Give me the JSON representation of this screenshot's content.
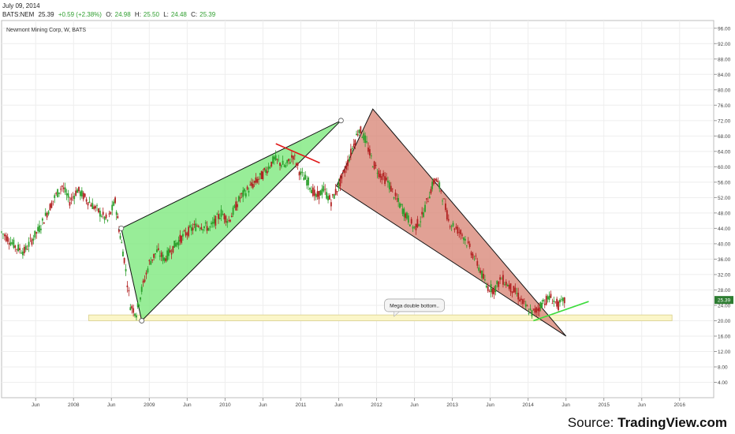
{
  "header": {
    "date": "July 09, 2014",
    "symbol": "BATS:NEM",
    "last": "25.39",
    "change": "+0.59 (+2.38%)",
    "open_label": "O:",
    "open": "24.98",
    "high_label": "H:",
    "high": "25.50",
    "low_label": "L:",
    "low": "24.48",
    "close_label": "C:",
    "close": "25.39"
  },
  "source": {
    "label": "Source:",
    "name": "TradingView.com"
  },
  "colors": {
    "up_candle": "#2ca02c",
    "down_candle": "#b22222",
    "green_wedge": "#7ee87e",
    "red_wedge": "#d98a7a",
    "support_band": "#fbf6c8",
    "price_badge": "#2e7d32"
  },
  "chart_data": {
    "type": "candlestick",
    "title": "Newmont Mining Corp, W, BATS",
    "x_ticks": [
      "Jun",
      "2008",
      "Jun",
      "2009",
      "Jun",
      "2010",
      "Jun",
      "2011",
      "Jun",
      "2012",
      "Jun",
      "2013",
      "Jun",
      "2014",
      "Jun",
      "2015",
      "Jun",
      "2016"
    ],
    "y_ticks": [
      "96.00",
      "92.00",
      "88.00",
      "84.00",
      "80.00",
      "76.00",
      "72.00",
      "68.00",
      "64.00",
      "60.00",
      "56.00",
      "52.00",
      "48.00",
      "44.00",
      "40.00",
      "36.00",
      "32.00",
      "28.00",
      "24.00",
      "20.00",
      "16.00",
      "12.00",
      "8.00",
      "4.00"
    ],
    "ylim": [
      0,
      98
    ],
    "xlim": [
      2007.0,
      2016.4
    ],
    "grid": true,
    "last_price_label": "25.39",
    "price_path": [
      [
        2007.0,
        43
      ],
      [
        2007.1,
        41
      ],
      [
        2007.2,
        39
      ],
      [
        2007.3,
        38
      ],
      [
        2007.4,
        41
      ],
      [
        2007.5,
        44
      ],
      [
        2007.6,
        48
      ],
      [
        2007.7,
        52
      ],
      [
        2007.8,
        55
      ],
      [
        2007.9,
        51
      ],
      [
        2008.0,
        54
      ],
      [
        2008.1,
        52
      ],
      [
        2008.2,
        50
      ],
      [
        2008.3,
        48
      ],
      [
        2008.4,
        46
      ],
      [
        2008.5,
        51
      ],
      [
        2008.55,
        44
      ],
      [
        2008.62,
        36
      ],
      [
        2008.7,
        24
      ],
      [
        2008.78,
        22
      ],
      [
        2008.85,
        28
      ],
      [
        2008.95,
        35
      ],
      [
        2009.05,
        38
      ],
      [
        2009.15,
        36
      ],
      [
        2009.3,
        40
      ],
      [
        2009.45,
        43
      ],
      [
        2009.6,
        45
      ],
      [
        2009.75,
        44
      ],
      [
        2009.9,
        48
      ],
      [
        2010.0,
        46
      ],
      [
        2010.15,
        52
      ],
      [
        2010.3,
        55
      ],
      [
        2010.45,
        58
      ],
      [
        2010.6,
        62
      ],
      [
        2010.75,
        60
      ],
      [
        2010.85,
        63
      ],
      [
        2010.95,
        58
      ],
      [
        2011.05,
        56
      ],
      [
        2011.15,
        52
      ],
      [
        2011.25,
        54
      ],
      [
        2011.35,
        51
      ],
      [
        2011.45,
        55
      ],
      [
        2011.55,
        60
      ],
      [
        2011.65,
        66
      ],
      [
        2011.72,
        70
      ],
      [
        2011.8,
        67
      ],
      [
        2011.9,
        61
      ],
      [
        2012.0,
        58
      ],
      [
        2012.1,
        56
      ],
      [
        2012.2,
        52
      ],
      [
        2012.35,
        47
      ],
      [
        2012.45,
        44
      ],
      [
        2012.55,
        47
      ],
      [
        2012.65,
        53
      ],
      [
        2012.72,
        57
      ],
      [
        2012.8,
        54
      ],
      [
        2012.9,
        46
      ],
      [
        2013.0,
        44
      ],
      [
        2013.1,
        42
      ],
      [
        2013.2,
        38
      ],
      [
        2013.3,
        34
      ],
      [
        2013.4,
        29
      ],
      [
        2013.5,
        28
      ],
      [
        2013.6,
        31
      ],
      [
        2013.7,
        29
      ],
      [
        2013.8,
        27
      ],
      [
        2013.9,
        24
      ],
      [
        2014.0,
        22
      ],
      [
        2014.08,
        23
      ],
      [
        2014.15,
        25
      ],
      [
        2014.25,
        26
      ],
      [
        2014.35,
        24
      ],
      [
        2014.45,
        25.39
      ]
    ],
    "annotations": [
      {
        "type": "callout",
        "text": "Mega double bottom..",
        "x": 2012.45,
        "y": 24
      },
      {
        "type": "triangle",
        "name": "green-wedge",
        "points": [
          [
            2008.58,
            44
          ],
          [
            2011.48,
            72
          ],
          [
            2008.85,
            20
          ]
        ]
      },
      {
        "type": "triangle",
        "name": "red-wedge",
        "points": [
          [
            2011.42,
            55
          ],
          [
            2011.9,
            75
          ],
          [
            2014.45,
            16
          ]
        ]
      },
      {
        "type": "band",
        "name": "support-band",
        "y0": 20,
        "y1": 21.5,
        "x0": 2008.15,
        "x1": 2015.85
      },
      {
        "type": "line",
        "name": "red-breakdown-line",
        "points": [
          [
            2010.62,
            66
          ],
          [
            2011.2,
            61
          ]
        ]
      },
      {
        "type": "line",
        "name": "green-uptrend-line",
        "points": [
          [
            2014.02,
            20
          ],
          [
            2014.75,
            25
          ]
        ]
      }
    ]
  }
}
